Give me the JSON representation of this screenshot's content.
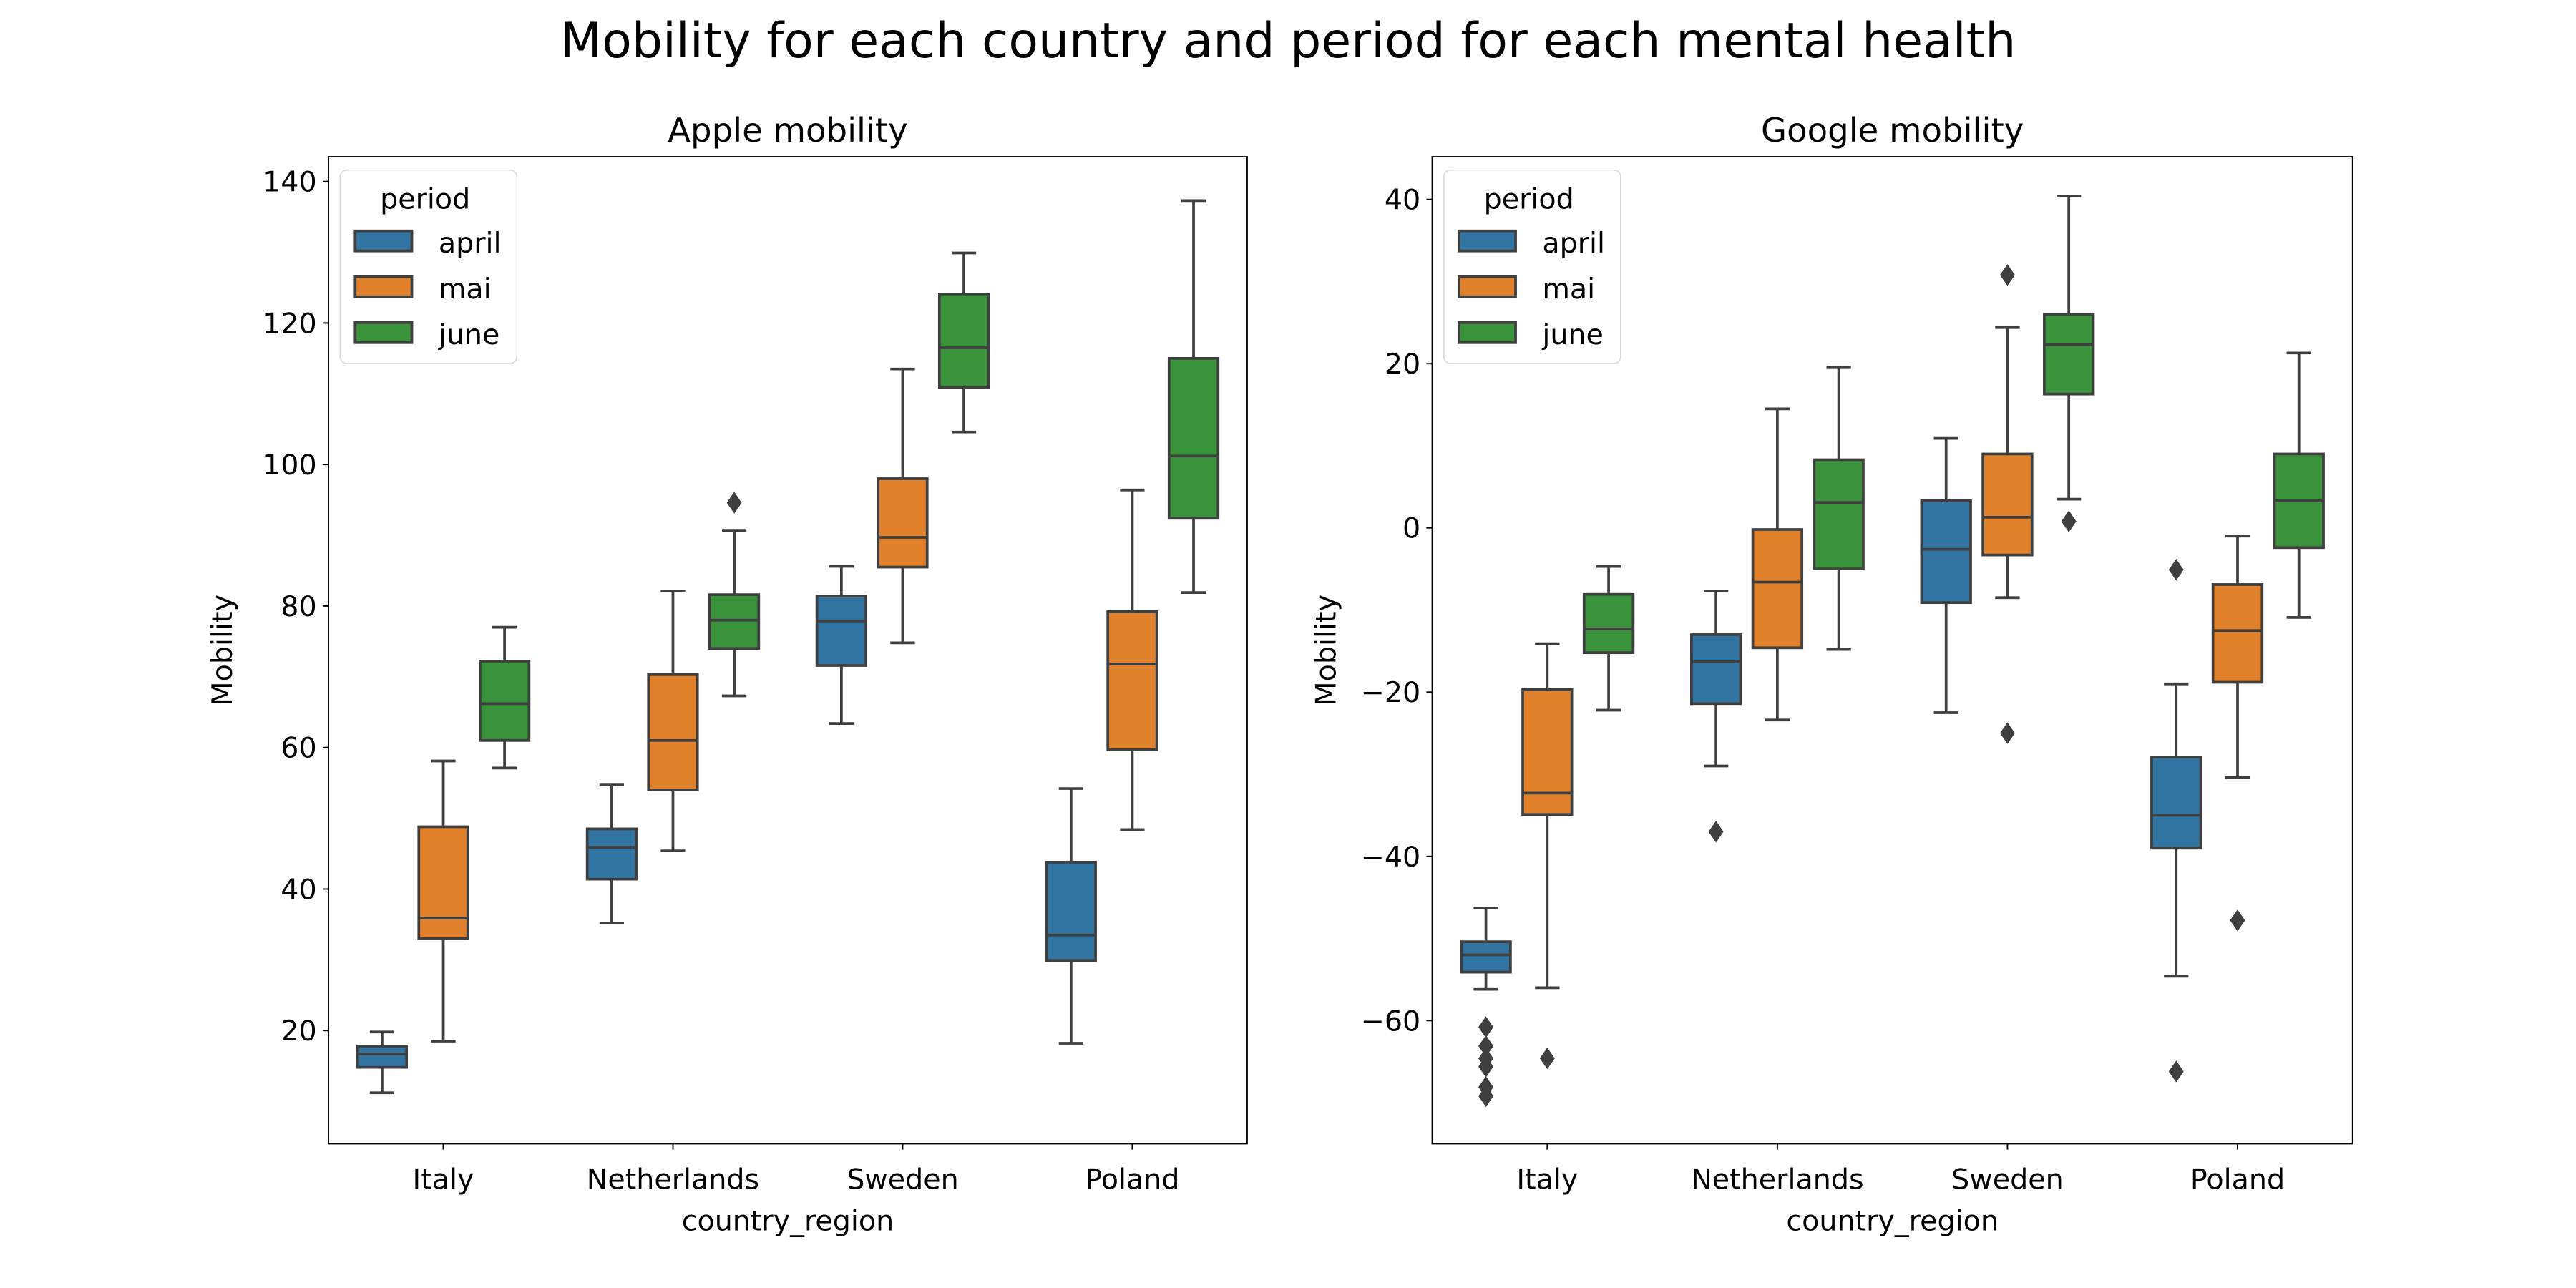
{
  "figure": {
    "title": "Mobility for each country and period for each mental health"
  },
  "chart_data": [
    {
      "type": "box",
      "title": "Apple mobility",
      "xlabel": "country_region",
      "ylabel": "Mobility",
      "categories": [
        "Italy",
        "Netherlands",
        "Sweden",
        "Poland"
      ],
      "ylim": [
        4,
        143.5
      ],
      "yticks": [
        20,
        40,
        60,
        80,
        100,
        120,
        140
      ],
      "legend": {
        "title": "period",
        "position": "upper left"
      },
      "series": [
        {
          "name": "april",
          "color": "#3274a1",
          "boxes": [
            {
              "whislo": 11.2,
              "q1": 14.8,
              "med": 16.7,
              "q3": 17.8,
              "whishi": 19.8,
              "fliers": []
            },
            {
              "whislo": 35.2,
              "q1": 41.4,
              "med": 45.9,
              "q3": 48.5,
              "whishi": 54.8,
              "fliers": []
            },
            {
              "whislo": 63.4,
              "q1": 71.6,
              "med": 77.9,
              "q3": 81.4,
              "whishi": 85.6,
              "fliers": []
            },
            {
              "whislo": 18.2,
              "q1": 29.9,
              "med": 33.5,
              "q3": 43.8,
              "whishi": 54.2,
              "fliers": []
            }
          ]
        },
        {
          "name": "mai",
          "color": "#e1812c",
          "boxes": [
            {
              "whislo": 18.5,
              "q1": 33.0,
              "med": 35.9,
              "q3": 48.8,
              "whishi": 58.1,
              "fliers": []
            },
            {
              "whislo": 45.4,
              "q1": 54.0,
              "med": 61.0,
              "q3": 70.3,
              "whishi": 82.1,
              "fliers": []
            },
            {
              "whislo": 74.8,
              "q1": 85.5,
              "med": 89.7,
              "q3": 98.0,
              "whishi": 113.5,
              "fliers": []
            },
            {
              "whislo": 48.4,
              "q1": 59.7,
              "med": 71.8,
              "q3": 79.2,
              "whishi": 96.4,
              "fliers": []
            }
          ]
        },
        {
          "name": "june",
          "color": "#3a923a",
          "boxes": [
            {
              "whislo": 57.1,
              "q1": 61.0,
              "med": 66.2,
              "q3": 72.2,
              "whishi": 77.0,
              "fliers": []
            },
            {
              "whislo": 67.3,
              "q1": 74.0,
              "med": 78.0,
              "q3": 81.6,
              "whishi": 90.7,
              "fliers": [
                94.6
              ]
            },
            {
              "whislo": 104.6,
              "q1": 110.9,
              "med": 116.5,
              "q3": 124.1,
              "whishi": 129.9,
              "fliers": []
            },
            {
              "whislo": 81.9,
              "q1": 92.4,
              "med": 101.2,
              "q3": 115.0,
              "whishi": 137.3,
              "fliers": []
            }
          ]
        }
      ]
    },
    {
      "type": "box",
      "title": "Google mobility",
      "xlabel": "country_region",
      "ylabel": "Mobility",
      "categories": [
        "Italy",
        "Netherlands",
        "Sweden",
        "Poland"
      ],
      "ylim": [
        -75,
        45.2
      ],
      "yticks": [
        -60,
        -40,
        -20,
        0,
        20,
        40
      ],
      "legend": {
        "title": "period",
        "position": "upper left"
      },
      "series": [
        {
          "name": "april",
          "color": "#3274a1",
          "boxes": [
            {
              "whislo": -56.2,
              "q1": -54.1,
              "med": -52.0,
              "q3": -50.4,
              "whishi": -46.3,
              "fliers": [
                -60.8,
                -63.1,
                -64.6,
                -65.6,
                -68.1,
                -69.2
              ]
            },
            {
              "whislo": -29.0,
              "q1": -21.4,
              "med": -16.3,
              "q3": -13.0,
              "whishi": -7.7,
              "fliers": [
                -37.0
              ]
            },
            {
              "whislo": -22.5,
              "q1": -9.1,
              "med": -2.6,
              "q3": 3.3,
              "whishi": 10.9,
              "fliers": []
            },
            {
              "whislo": -54.6,
              "q1": -39.0,
              "med": -35.0,
              "q3": -27.9,
              "whishi": -19.0,
              "fliers": [
                -5.1,
                -66.2
              ]
            }
          ]
        },
        {
          "name": "mai",
          "color": "#e1812c",
          "boxes": [
            {
              "whislo": -56.0,
              "q1": -34.9,
              "med": -32.3,
              "q3": -19.7,
              "whishi": -14.1,
              "fliers": [
                -64.6
              ]
            },
            {
              "whislo": -23.4,
              "q1": -14.6,
              "med": -6.6,
              "q3": -0.2,
              "whishi": 14.5,
              "fliers": []
            },
            {
              "whislo": -8.5,
              "q1": -3.3,
              "med": 1.3,
              "q3": 9.0,
              "whishi": 24.4,
              "fliers": [
                30.8,
                -25.0
              ]
            },
            {
              "whislo": -30.4,
              "q1": -18.8,
              "med": -12.5,
              "q3": -6.9,
              "whishi": -1.0,
              "fliers": [
                -47.8
              ]
            }
          ]
        },
        {
          "name": "june",
          "color": "#3a923a",
          "boxes": [
            {
              "whislo": -22.2,
              "q1": -15.2,
              "med": -12.3,
              "q3": -8.1,
              "whishi": -4.7,
              "fliers": []
            },
            {
              "whislo": -14.8,
              "q1": -5.0,
              "med": 3.1,
              "q3": 8.3,
              "whishi": 19.6,
              "fliers": []
            },
            {
              "whislo": 3.5,
              "q1": 16.3,
              "med": 22.3,
              "q3": 26.0,
              "whishi": 40.4,
              "fliers": [
                0.8
              ]
            },
            {
              "whislo": -10.9,
              "q1": -2.4,
              "med": 3.3,
              "q3": 9.0,
              "whishi": 21.3,
              "fliers": []
            }
          ]
        }
      ]
    }
  ]
}
